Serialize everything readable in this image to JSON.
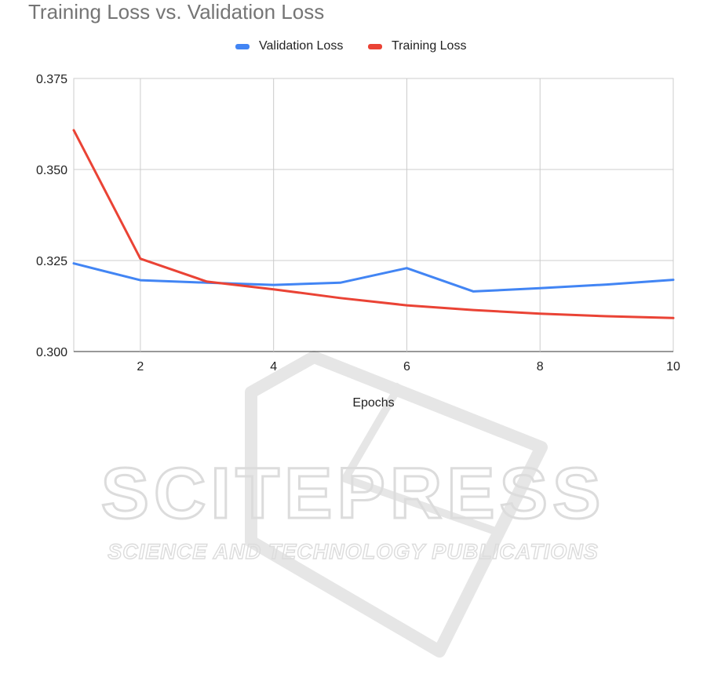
{
  "chart_data": {
    "type": "line",
    "title": "Training Loss vs. Validation Loss",
    "xlabel": "Epochs",
    "ylabel": "",
    "x": [
      1,
      2,
      3,
      4,
      5,
      6,
      7,
      8,
      9,
      10
    ],
    "xlim": [
      1,
      10
    ],
    "ylim": [
      0.3,
      0.375
    ],
    "xticks": [
      2,
      4,
      6,
      8,
      10
    ],
    "xtick_labels": [
      "2",
      "4",
      "6",
      "8",
      "10"
    ],
    "yticks": [
      0.3,
      0.325,
      0.35,
      0.375
    ],
    "ytick_labels": [
      "0.300",
      "0.325",
      "0.350",
      "0.375"
    ],
    "grid": true,
    "legend_position": "top",
    "series": [
      {
        "name": "Validation Loss",
        "color": "#4285f4",
        "values": [
          0.3242,
          0.3196,
          0.3189,
          0.3183,
          0.3189,
          0.3229,
          0.3165,
          0.3174,
          0.3184,
          0.3197
        ]
      },
      {
        "name": "Training Loss",
        "color": "#ea4335",
        "values": [
          0.3608,
          0.3255,
          0.3192,
          0.3171,
          0.3147,
          0.3127,
          0.3114,
          0.3104,
          0.3097,
          0.3092
        ]
      }
    ]
  },
  "watermark": {
    "main": "SCITEPRESS",
    "sub": "SCIENCE AND TECHNOLOGY PUBLICATIONS",
    "color": "#d9d9d9"
  }
}
